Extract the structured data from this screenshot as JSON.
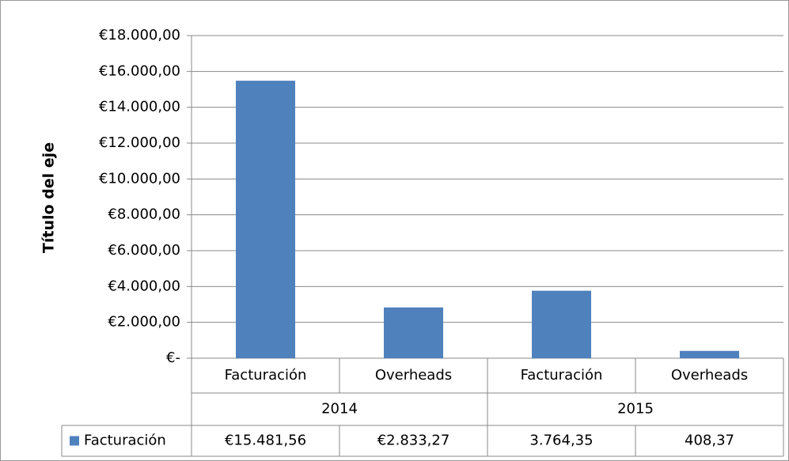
{
  "chart_data": {
    "type": "bar",
    "y_axis_label": "Título del eje",
    "categories": [
      "Facturación",
      "Overheads",
      "Facturación",
      "Overheads"
    ],
    "groups": [
      "2014",
      "2015"
    ],
    "series": [
      {
        "name": "Facturación",
        "color": "#4f81bd",
        "values": [
          15481.56,
          2833.27,
          3764.35,
          408.37
        ],
        "value_labels": [
          "€15.481,56",
          "€2.833,27",
          "3.764,35",
          "408,37"
        ]
      }
    ],
    "ylim": [
      0,
      18000
    ],
    "yticks": [
      {
        "value": 0,
        "label": "€-"
      },
      {
        "value": 2000,
        "label": "€2.000,00"
      },
      {
        "value": 4000,
        "label": "€4.000,00"
      },
      {
        "value": 6000,
        "label": "€6.000,00"
      },
      {
        "value": 8000,
        "label": "€8.000,00"
      },
      {
        "value": 10000,
        "label": "€10.000,00"
      },
      {
        "value": 12000,
        "label": "€12.000,00"
      },
      {
        "value": 14000,
        "label": "€14.000,00"
      },
      {
        "value": 16000,
        "label": "€16.000,00"
      },
      {
        "value": 18000,
        "label": "€18.000,00"
      }
    ],
    "grid": true
  }
}
